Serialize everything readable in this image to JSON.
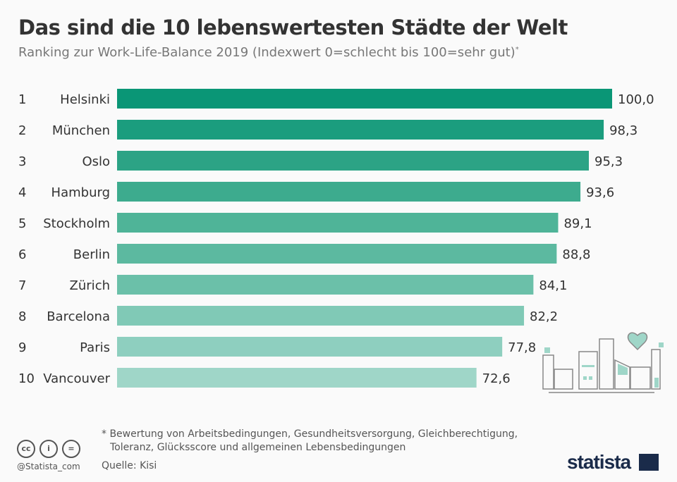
{
  "chart_data": {
    "type": "bar",
    "orientation": "horizontal",
    "title": "Das sind die 10 lebenswertesten Städte der Welt",
    "subtitle": "Ranking zur Work-Life-Balance 2019 (Indexwert 0=schlecht bis 100=sehr gut)",
    "subtitle_mark": "*",
    "ranks": [
      "1",
      "2",
      "3",
      "4",
      "5",
      "6",
      "7",
      "8",
      "9",
      "10"
    ],
    "categories": [
      "Helsinki",
      "München",
      "Oslo",
      "Hamburg",
      "Stockholm",
      "Berlin",
      "Zürich",
      "Barcelona",
      "Paris",
      "Vancouver"
    ],
    "values": [
      100.0,
      98.3,
      95.3,
      93.6,
      89.1,
      88.8,
      84.1,
      82.2,
      77.8,
      72.6
    ],
    "value_labels": [
      "100,0",
      "98,3",
      "95,3",
      "93,6",
      "89,1",
      "88,8",
      "84,1",
      "82,2",
      "77,8",
      "72,6"
    ],
    "xlim": [
      0,
      100
    ],
    "grid": false,
    "colors": [
      "#0a9676",
      "#1b9d7e",
      "#2ca385",
      "#3dab8e",
      "#4fb498",
      "#5cb9a0",
      "#6bc0a9",
      "#80c9b6",
      "#8ecfbf",
      "#9fd6c8"
    ]
  },
  "footer": {
    "note_line1": "* Bewertung von Arbeitsbedingungen, Gesundheitsversorgung, Gleichberechtigung,",
    "note_line2": "Toleranz, Glücksscore und allgemeinen Lebensbedingungen",
    "source": "Quelle: Kisi",
    "handle": "@Statista_com",
    "brand": "statista"
  },
  "icons": [
    "cc-icon",
    "by-icon",
    "nd-icon",
    "city-illustration",
    "heart-icon"
  ]
}
